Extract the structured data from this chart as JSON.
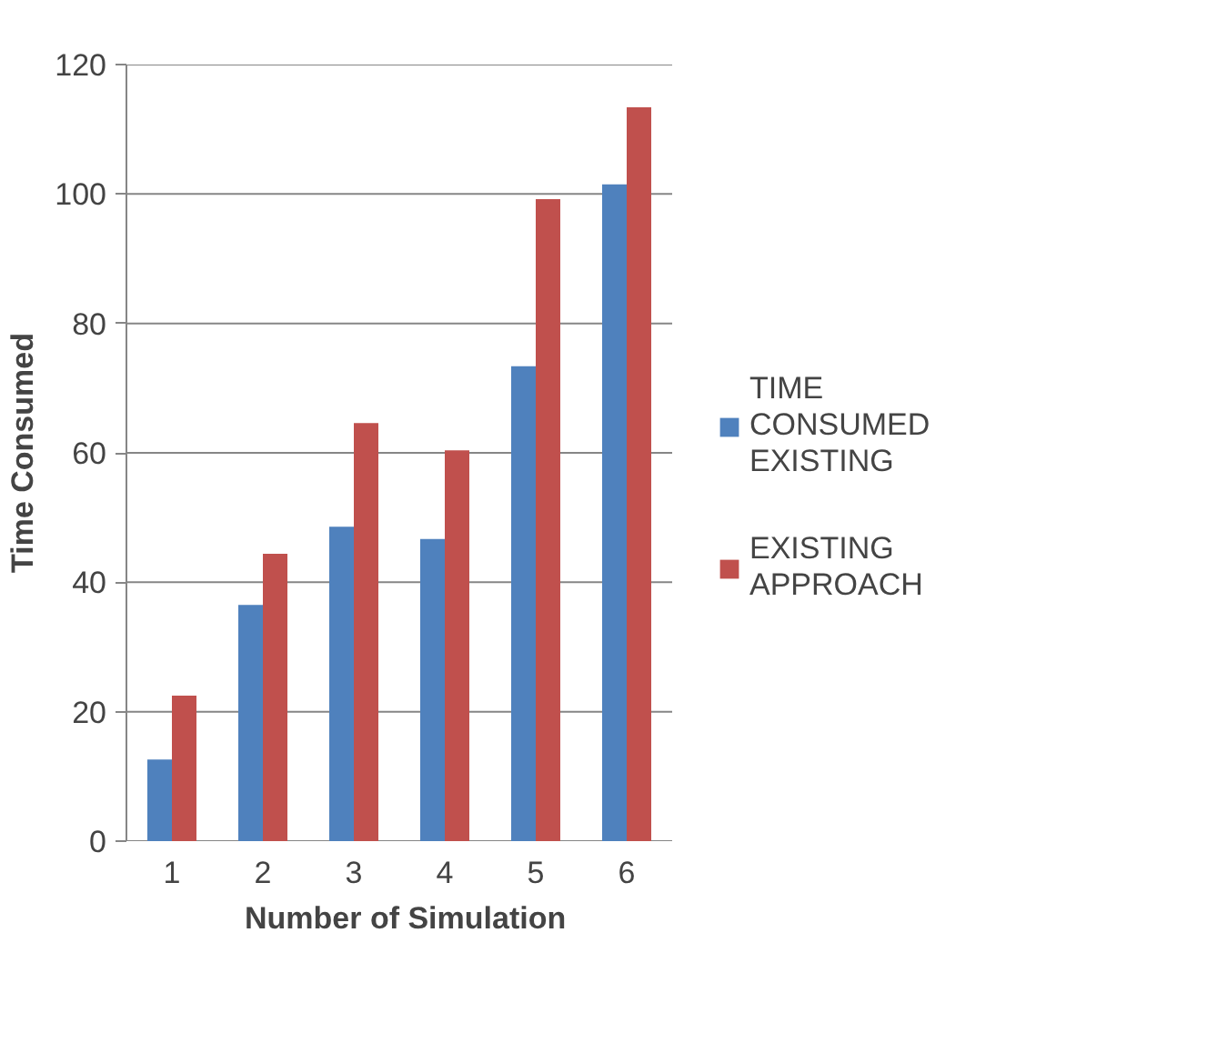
{
  "chart_data": {
    "type": "bar",
    "xlabel": "Number of Simulation",
    "ylabel": "Time Consumed",
    "categories": [
      "1",
      "2",
      "3",
      "4",
      "5",
      "6"
    ],
    "series": [
      {
        "name": "TIME CONSUMED EXISTING",
        "color": "#4f81bd",
        "values": [
          12.6,
          36.5,
          48.6,
          46.7,
          73.4,
          101.5
        ]
      },
      {
        "name": "EXISTING APPROACH",
        "color": "#c0504d",
        "values": [
          22.5,
          44.4,
          64.6,
          60.4,
          99.2,
          113.4
        ]
      }
    ],
    "ylim": [
      0,
      120
    ],
    "yticks": [
      0,
      20,
      40,
      60,
      80,
      100,
      120
    ],
    "grid": "y",
    "legend": "right"
  }
}
